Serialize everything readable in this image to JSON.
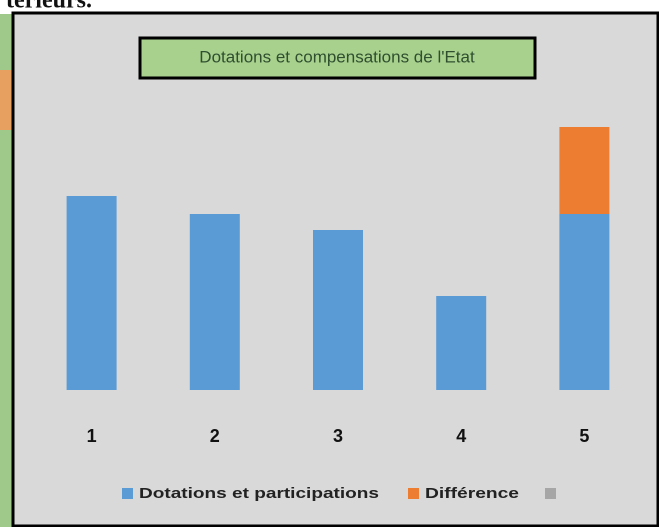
{
  "page_text": "térieurs.",
  "chart_data": {
    "type": "stacked_bar",
    "title": "Dotations et compensations de l'Etat",
    "categories": [
      "1",
      "2",
      "3",
      "4",
      "5"
    ],
    "series": [
      {
        "name": "Dotations et participations",
        "color": "#5b9bd5",
        "values": [
          194,
          176,
          160,
          94,
          176
        ]
      },
      {
        "name": "Différence",
        "color": "#ed7d31",
        "values": [
          0,
          0,
          0,
          0,
          87
        ]
      }
    ],
    "legend": "bottom"
  }
}
